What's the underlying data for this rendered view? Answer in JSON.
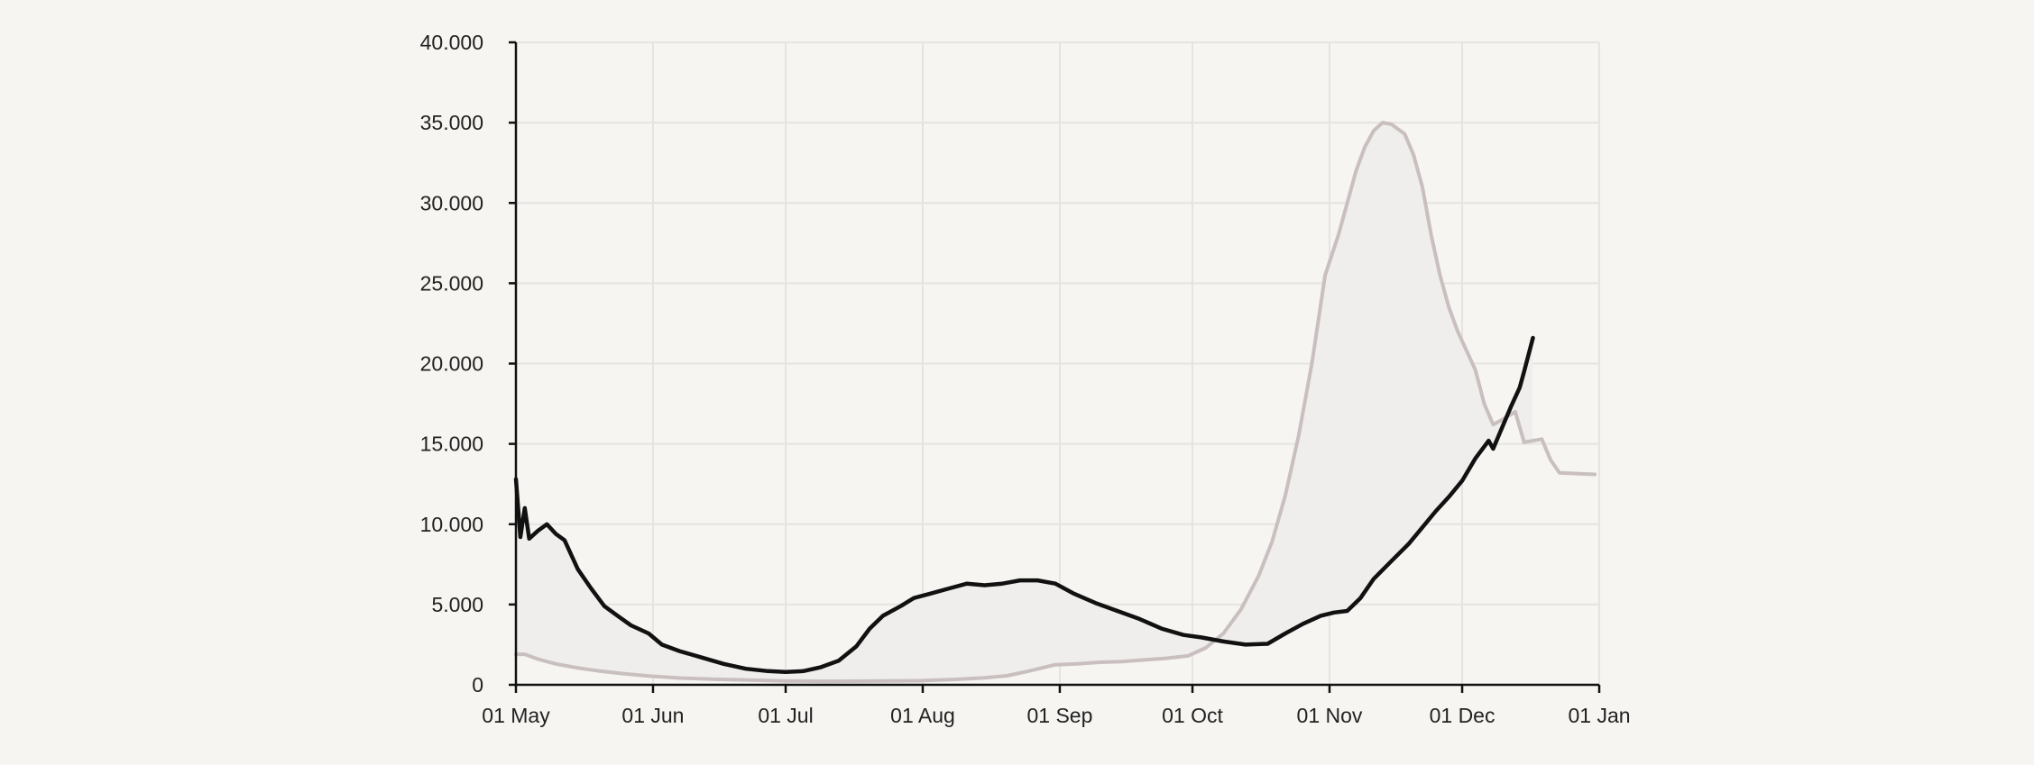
{
  "chart_data": {
    "type": "line",
    "title": "",
    "xlabel": "",
    "ylabel": "",
    "x_ticks": [
      "01 May",
      "01 Jun",
      "01 Jul",
      "01 Aug",
      "01 Sep",
      "01 Oct",
      "01 Nov",
      "01 Dec",
      "01 Jan"
    ],
    "y_ticks": [
      "0",
      "5.000",
      "10.000",
      "15.000",
      "20.000",
      "25.000",
      "30.000",
      "35.000",
      "40.000"
    ],
    "xlim": [
      "2021-05-01",
      "2022-01-01"
    ],
    "ylim": [
      0,
      40000
    ],
    "grid": true,
    "legend": "none",
    "fill_between_series": true,
    "fill_color": "#efeeed",
    "series": [
      {
        "color": "#111111",
        "points": [
          [
            "2021-05-01",
            12800
          ],
          [
            "2021-05-02",
            9200
          ],
          [
            "2021-05-03",
            11000
          ],
          [
            "2021-05-04",
            9100
          ],
          [
            "2021-05-06",
            9600
          ],
          [
            "2021-05-08",
            10000
          ],
          [
            "2021-05-10",
            9400
          ],
          [
            "2021-05-12",
            9000
          ],
          [
            "2021-05-15",
            7200
          ],
          [
            "2021-05-18",
            6000
          ],
          [
            "2021-05-21",
            4900
          ],
          [
            "2021-05-24",
            4300
          ],
          [
            "2021-05-27",
            3700
          ],
          [
            "2021-05-31",
            3200
          ],
          [
            "2021-06-03",
            2500
          ],
          [
            "2021-06-07",
            2100
          ],
          [
            "2021-06-12",
            1700
          ],
          [
            "2021-06-17",
            1300
          ],
          [
            "2021-06-22",
            1000
          ],
          [
            "2021-06-27",
            850
          ],
          [
            "2021-07-01",
            800
          ],
          [
            "2021-07-05",
            850
          ],
          [
            "2021-07-09",
            1100
          ],
          [
            "2021-07-13",
            1500
          ],
          [
            "2021-07-17",
            2400
          ],
          [
            "2021-07-20",
            3500
          ],
          [
            "2021-07-23",
            4300
          ],
          [
            "2021-07-27",
            4900
          ],
          [
            "2021-07-30",
            5400
          ],
          [
            "2021-08-03",
            5700
          ],
          [
            "2021-08-07",
            6000
          ],
          [
            "2021-08-11",
            6300
          ],
          [
            "2021-08-15",
            6200
          ],
          [
            "2021-08-19",
            6300
          ],
          [
            "2021-08-23",
            6500
          ],
          [
            "2021-08-27",
            6500
          ],
          [
            "2021-08-31",
            6300
          ],
          [
            "2021-09-04",
            5700
          ],
          [
            "2021-09-09",
            5100
          ],
          [
            "2021-09-14",
            4600
          ],
          [
            "2021-09-19",
            4100
          ],
          [
            "2021-09-24",
            3500
          ],
          [
            "2021-09-29",
            3100
          ],
          [
            "2021-10-03",
            2950
          ],
          [
            "2021-10-08",
            2700
          ],
          [
            "2021-10-13",
            2500
          ],
          [
            "2021-10-18",
            2550
          ],
          [
            "2021-10-22",
            3200
          ],
          [
            "2021-10-26",
            3800
          ],
          [
            "2021-10-30",
            4300
          ],
          [
            "2021-11-02",
            4500
          ],
          [
            "2021-11-05",
            4600
          ],
          [
            "2021-11-08",
            5400
          ],
          [
            "2021-11-11",
            6600
          ],
          [
            "2021-11-15",
            7700
          ],
          [
            "2021-11-19",
            8800
          ],
          [
            "2021-11-22",
            9800
          ],
          [
            "2021-11-25",
            10800
          ],
          [
            "2021-11-28",
            11700
          ],
          [
            "2021-12-01",
            12700
          ],
          [
            "2021-12-04",
            14100
          ],
          [
            "2021-12-07",
            15200
          ],
          [
            "2021-12-08",
            14700
          ],
          [
            "2021-12-10",
            16000
          ],
          [
            "2021-12-12",
            17300
          ],
          [
            "2021-12-14",
            18500
          ],
          [
            "2021-12-15",
            19500
          ],
          [
            "2021-12-17",
            21600
          ]
        ]
      },
      {
        "color": "#c9bfbf",
        "points": [
          [
            "2021-05-01",
            1900
          ],
          [
            "2021-05-03",
            1900
          ],
          [
            "2021-05-06",
            1600
          ],
          [
            "2021-05-10",
            1300
          ],
          [
            "2021-05-15",
            1050
          ],
          [
            "2021-05-20",
            850
          ],
          [
            "2021-05-25",
            700
          ],
          [
            "2021-05-31",
            550
          ],
          [
            "2021-06-07",
            420
          ],
          [
            "2021-06-15",
            340
          ],
          [
            "2021-06-25",
            280
          ],
          [
            "2021-07-01",
            240
          ],
          [
            "2021-07-10",
            220
          ],
          [
            "2021-07-20",
            230
          ],
          [
            "2021-07-31",
            250
          ],
          [
            "2021-08-08",
            330
          ],
          [
            "2021-08-15",
            430
          ],
          [
            "2021-08-20",
            560
          ],
          [
            "2021-08-25",
            850
          ],
          [
            "2021-08-31",
            1250
          ],
          [
            "2021-09-05",
            1300
          ],
          [
            "2021-09-10",
            1400
          ],
          [
            "2021-09-15",
            1450
          ],
          [
            "2021-09-20",
            1550
          ],
          [
            "2021-09-25",
            1650
          ],
          [
            "2021-09-30",
            1800
          ],
          [
            "2021-10-04",
            2300
          ],
          [
            "2021-10-08",
            3200
          ],
          [
            "2021-10-12",
            4700
          ],
          [
            "2021-10-16",
            6800
          ],
          [
            "2021-10-19",
            8900
          ],
          [
            "2021-10-22",
            11800
          ],
          [
            "2021-10-25",
            15500
          ],
          [
            "2021-10-28",
            20000
          ],
          [
            "2021-10-31",
            25500
          ],
          [
            "2021-11-03",
            28000
          ],
          [
            "2021-11-05",
            30000
          ],
          [
            "2021-11-07",
            32000
          ],
          [
            "2021-11-09",
            33500
          ],
          [
            "2021-11-11",
            34500
          ],
          [
            "2021-11-13",
            35000
          ],
          [
            "2021-11-15",
            34900
          ],
          [
            "2021-11-18",
            34300
          ],
          [
            "2021-11-20",
            33000
          ],
          [
            "2021-11-22",
            31000
          ],
          [
            "2021-11-24",
            28000
          ],
          [
            "2021-11-26",
            25500
          ],
          [
            "2021-11-28",
            23500
          ],
          [
            "2021-11-30",
            22000
          ],
          [
            "2021-12-02",
            20800
          ],
          [
            "2021-12-04",
            19600
          ],
          [
            "2021-12-06",
            17500
          ],
          [
            "2021-12-08",
            16200
          ],
          [
            "2021-12-10",
            16500
          ],
          [
            "2021-12-13",
            17000
          ],
          [
            "2021-12-15",
            15100
          ],
          [
            "2021-12-17",
            15200
          ],
          [
            "2021-12-19",
            15300
          ],
          [
            "2021-12-21",
            14000
          ],
          [
            "2021-12-23",
            13200
          ],
          [
            "2021-12-31",
            13100
          ]
        ]
      }
    ]
  }
}
